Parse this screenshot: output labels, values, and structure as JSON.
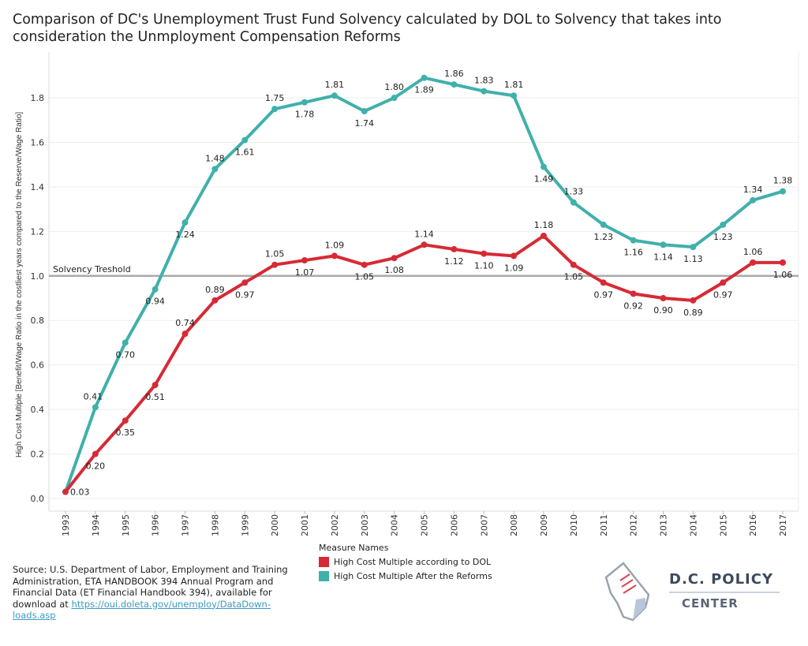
{
  "title": "Comparison of DC's Unemployment Trust Fund Solvency calculated by DOL to Solvency that takes into consideration the Unmployment Compensation Reforms",
  "chart_data": {
    "type": "line",
    "title": "Comparison of DC's Unemployment Trust Fund Solvency calculated by DOL to Solvency that takes into consideration the Unmployment Compensation Reforms",
    "xlabel": "",
    "ylabel": "High Cost Multiple [Benefit/Wage Ratio in the costliest years compared to the Reserve/Wage Ratio]",
    "ylim": [
      0,
      2.0
    ],
    "yticks": [
      "0.0",
      "0.2",
      "0.4",
      "0.6",
      "0.8",
      "1.0",
      "1.2",
      "1.4",
      "1.6",
      "1.8"
    ],
    "x": [
      "1993",
      "1994",
      "1995",
      "1996",
      "1997",
      "1998",
      "1999",
      "2000",
      "2001",
      "2002",
      "2003",
      "2004",
      "2005",
      "2006",
      "2007",
      "2008",
      "2009",
      "2010",
      "2011",
      "2012",
      "2013",
      "2014",
      "2015",
      "2016",
      "2017"
    ],
    "series": [
      {
        "name": "High Cost Multiple according to DOL",
        "color": "#d62a35",
        "values": [
          0.03,
          0.2,
          0.35,
          0.51,
          0.74,
          0.89,
          0.97,
          1.05,
          1.07,
          1.09,
          1.05,
          1.08,
          1.14,
          1.12,
          1.1,
          1.09,
          1.18,
          1.05,
          0.97,
          0.92,
          0.9,
          0.89,
          0.97,
          1.06,
          1.06
        ]
      },
      {
        "name": "High Cost Multiple After the Reforms",
        "color": "#40b0ab",
        "values": [
          0.03,
          0.41,
          0.7,
          0.94,
          1.24,
          1.48,
          1.61,
          1.75,
          1.78,
          1.81,
          1.74,
          1.8,
          1.89,
          1.86,
          1.83,
          1.81,
          1.49,
          1.33,
          1.23,
          1.16,
          1.14,
          1.13,
          1.23,
          1.34,
          1.38
        ]
      }
    ],
    "reference_line": {
      "value": 1.0,
      "label": "Solvency Treshold",
      "color": "#aaaaaa"
    },
    "grid": true,
    "legend": {
      "title": "Measure Names",
      "placement": "bottom-center"
    }
  },
  "source": {
    "text": "Source: U.S. Department of Labor, Employment and Training Administration, ETA HANDBOOK 394 Annual Program and Financial Data (ET Financial Handbook 394), available for download at ",
    "link": "https://oui.doleta.gov/unemploy/DataDown-loads.asp"
  },
  "logo": {
    "line1": "D.C. POLICY",
    "line2": "CENTER"
  }
}
